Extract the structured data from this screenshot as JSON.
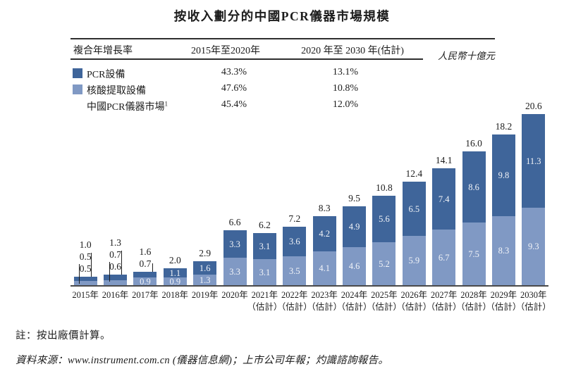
{
  "title": "按收入劃分的中國PCR儀器市場規模",
  "table": {
    "header": {
      "col1": "複合年增長率",
      "col2": "2015年至2020年",
      "col3": "2020 年至 2030 年(估計)"
    },
    "unit_label": "人民幣十億元",
    "rows": [
      {
        "label": "PCR設備",
        "swatch_color": "#3f659a",
        "cagr_2015_2020": "43.3%",
        "cagr_2020_2030": "13.1%"
      },
      {
        "label": "核酸提取設備",
        "swatch_color": "#8099c4",
        "cagr_2015_2020": "47.6%",
        "cagr_2020_2030": "10.8%"
      },
      {
        "label": "中國PCR儀器市場",
        "footnote_sup": "1",
        "cagr_2015_2020": "45.4%",
        "cagr_2020_2030": "12.0%"
      }
    ]
  },
  "chart_data": {
    "type": "bar",
    "subtype": "stacked",
    "title": "按收入劃分的中國PCR儀器市場規模",
    "ylabel": "人民幣十億元",
    "grid": false,
    "y_axis_shown": false,
    "legend_position": "top-left",
    "categories": [
      "2015年",
      "2016年",
      "2017年",
      "2018年",
      "2019年",
      "2020年",
      "2021年",
      "2022年",
      "2023年",
      "2024年",
      "2025年",
      "2026年",
      "2027年",
      "2028年",
      "2029年",
      "2030年"
    ],
    "estimate_label": "（估計）",
    "estimate_from_index": 6,
    "series": [
      {
        "name": "PCR設備",
        "stack_position": "top",
        "color": "#3f659a",
        "values": [
          0.5,
          0.7,
          0.7,
          1.1,
          1.6,
          3.3,
          3.1,
          3.6,
          4.2,
          4.9,
          5.6,
          6.5,
          7.4,
          8.6,
          9.8,
          11.3
        ]
      },
      {
        "name": "核酸提取設備",
        "stack_position": "bottom",
        "color": "#8099c4",
        "values": [
          0.5,
          0.6,
          0.9,
          0.9,
          1.3,
          3.3,
          3.1,
          3.5,
          4.1,
          4.6,
          5.2,
          5.9,
          6.7,
          7.5,
          8.3,
          9.3
        ]
      }
    ],
    "totals": [
      1.0,
      1.3,
      1.6,
      2.0,
      2.9,
      6.6,
      6.2,
      7.2,
      8.3,
      9.5,
      10.8,
      12.4,
      14.1,
      16.0,
      18.2,
      20.6
    ],
    "ylim": [
      0,
      20.6
    ]
  },
  "notes": {
    "note": "註：按出廠價計算。",
    "source": "資料來源：www.instrument.com.cn (儀器信息網)；上市公司年報；灼識諮詢報告。"
  }
}
